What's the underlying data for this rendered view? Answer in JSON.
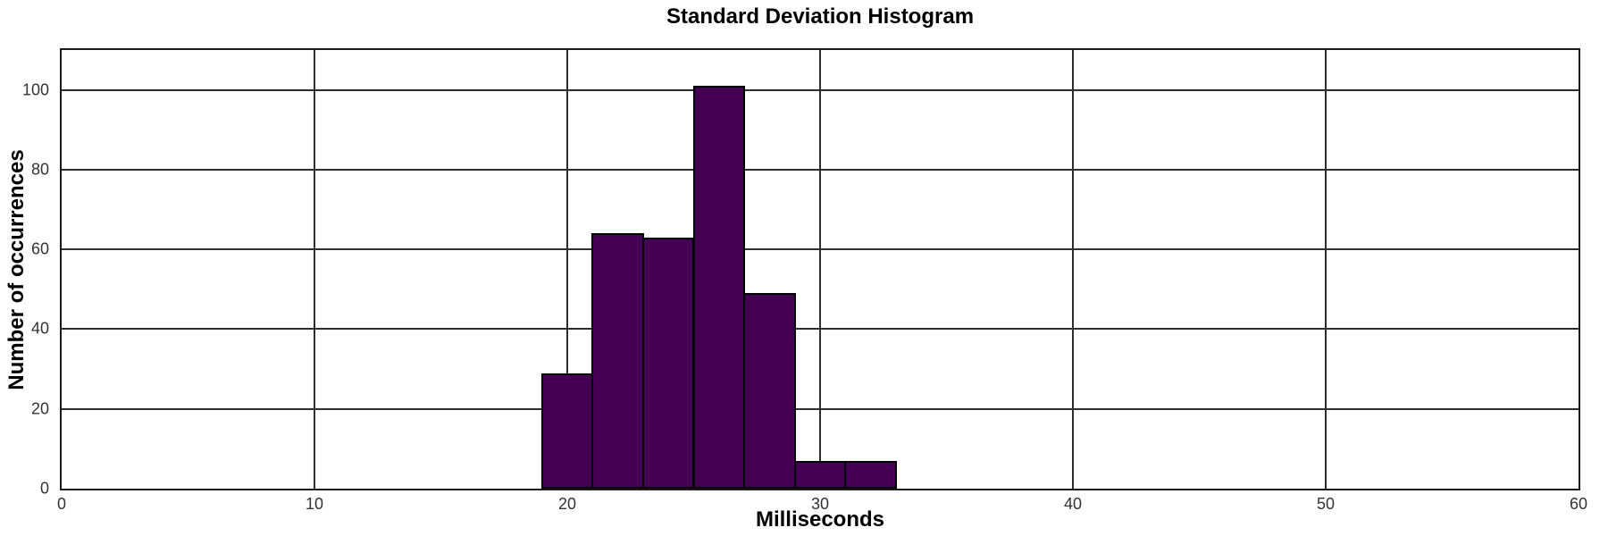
{
  "chart_data": {
    "type": "bar",
    "subtype": "histogram",
    "title": "Standard Deviation Histogram",
    "xlabel": "Milliseconds",
    "ylabel": "Number of occurrences",
    "bin_edges": [
      19,
      21,
      23,
      25,
      27,
      29,
      31,
      33
    ],
    "counts": [
      29,
      64,
      63,
      101,
      49,
      7,
      7
    ],
    "xlim": [
      0,
      60
    ],
    "ylim": [
      0,
      110
    ],
    "xticks": [
      0,
      10,
      20,
      30,
      40,
      50,
      60
    ],
    "yticks": [
      0,
      20,
      40,
      60,
      80,
      100
    ],
    "grid": true,
    "legend": "none",
    "colors": {
      "bar_fill": "#440154",
      "bar_edge": "#000000",
      "grid_line": "#2e2e2e",
      "axis_box": "#1a1a1a",
      "tick_label": "#333333",
      "text": "#000000",
      "background": "#ffffff"
    }
  }
}
